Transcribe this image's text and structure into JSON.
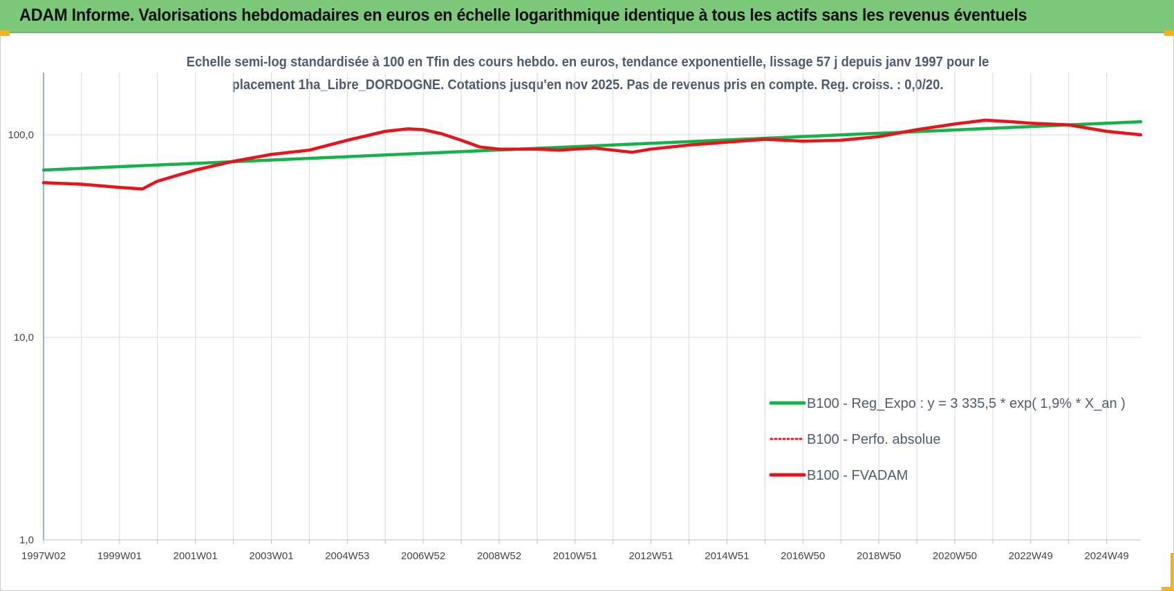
{
  "header": {
    "title": "ADAM Informe. Valorisations hebdomadaires en euros en échelle logarithmique identique à tous les actifs sans les revenus éventuels"
  },
  "colors": {
    "banner": "#7dc97a",
    "accent_corner": "#f2b31c",
    "series_green": "#15b24a",
    "series_red": "#e8141a",
    "subtitle_text": "#4d5b72",
    "gridline": "#d9d9d9"
  },
  "chart_data": {
    "type": "line",
    "title": "",
    "subtitle_line1": "Echelle semi-log standardisée à 100 en Tfin des cours hebdo. en euros, tendance exponentielle, lissage 57 j depuis janv 1997 pour le",
    "subtitle_line2": "placement 1ha_Libre_DORDOGNE. Cotations jusqu'en nov 2025.  Pas de revenus pris en compte. Reg. croiss. : 0,0/20.",
    "xlabel": "",
    "ylabel": "",
    "y_scale": "log",
    "ylim": [
      1,
      200
    ],
    "y_ticks": [
      {
        "value": 1,
        "label": "1,0"
      },
      {
        "value": 10,
        "label": "10,0"
      },
      {
        "value": 100,
        "label": "100,0"
      }
    ],
    "x_range": [
      1997.0,
      2025.9
    ],
    "x_tick_labels": [
      "1997W02",
      "1999W01",
      "2001W01",
      "2003W01",
      "2004W53",
      "2006W52",
      "2008W52",
      "2010W51",
      "2012W51",
      "2014W51",
      "2016W50",
      "2018W50",
      "2020W50",
      "2022W49",
      "2024W49"
    ],
    "x_tick_years": [
      1997.0,
      1999.0,
      2001.0,
      2003.0,
      2005.0,
      2007.0,
      2009.0,
      2011.0,
      2013.0,
      2015.0,
      2017.0,
      2019.0,
      2021.0,
      2023.0,
      2025.0
    ],
    "grid": true,
    "legend_position": "bottom-right",
    "series": [
      {
        "name": "B100 - Reg_Expo : y = 3 335,5 * exp( 1,9% *  X_an )",
        "style": "solid",
        "color": "#15b24a",
        "x": [
          1997.0,
          2025.9
        ],
        "y": [
          67,
          116
        ]
      },
      {
        "name": "B100 - Perfo. absolue",
        "style": "dotted",
        "color": "#e8141a",
        "x": [
          1997.0,
          1998.0,
          1999.0,
          1999.6,
          2000.0,
          2001.0,
          2002.0,
          2003.0,
          2004.0,
          2005.0,
          2006.0,
          2006.6,
          2007.0,
          2007.5,
          2008.0,
          2008.5,
          2009.0,
          2010.0,
          2010.6,
          2011.0,
          2011.5,
          2012.0,
          2012.5,
          2013.0,
          2014.0,
          2015.0,
          2016.0,
          2017.0,
          2018.0,
          2019.0,
          2020.0,
          2021.0,
          2021.8,
          2022.5,
          2023.0,
          2024.0,
          2025.0,
          2025.9
        ],
        "y": [
          58,
          57,
          55,
          54,
          59,
          67,
          74,
          80,
          84,
          94,
          104,
          107,
          106,
          101,
          94,
          87,
          85,
          85,
          84,
          85,
          86,
          84,
          82,
          85,
          89,
          92,
          95,
          93,
          94,
          98,
          106,
          113,
          118,
          116,
          114,
          112,
          104,
          100
        ]
      },
      {
        "name": "B100 - FVADAM",
        "style": "solid",
        "color": "#e8141a",
        "x": [
          1997.0,
          1998.0,
          1999.0,
          1999.6,
          2000.0,
          2001.0,
          2002.0,
          2003.0,
          2004.0,
          2005.0,
          2006.0,
          2006.6,
          2007.0,
          2007.5,
          2008.0,
          2008.5,
          2009.0,
          2010.0,
          2010.6,
          2011.0,
          2011.5,
          2012.0,
          2012.5,
          2013.0,
          2014.0,
          2015.0,
          2016.0,
          2017.0,
          2018.0,
          2019.0,
          2020.0,
          2021.0,
          2021.8,
          2022.5,
          2023.0,
          2024.0,
          2025.0,
          2025.9
        ],
        "y": [
          58,
          57,
          55,
          54,
          59,
          67,
          74,
          80,
          84,
          94,
          104,
          107,
          106,
          101,
          94,
          87,
          85,
          85,
          84,
          85,
          86,
          84,
          82,
          85,
          89,
          92,
          95,
          93,
          94,
          98,
          106,
          113,
          118,
          116,
          114,
          112,
          104,
          100
        ]
      }
    ]
  }
}
